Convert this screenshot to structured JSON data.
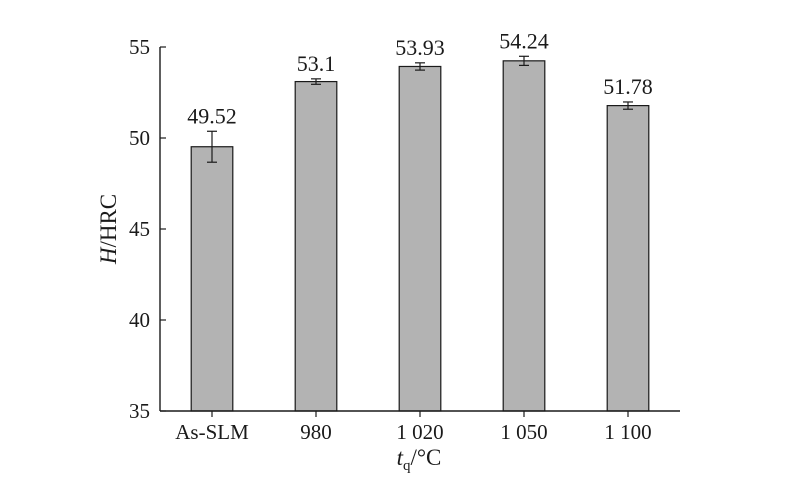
{
  "chart_data": {
    "type": "bar",
    "categories": [
      "As-SLM",
      "980",
      "1 020",
      "1 050",
      "1 100"
    ],
    "values": [
      49.52,
      53.1,
      53.93,
      54.24,
      51.78
    ],
    "errors": [
      0.85,
      0.15,
      0.2,
      0.25,
      0.2
    ],
    "data_labels": [
      "49.52",
      "53.1",
      "53.93",
      "54.24",
      "51.78"
    ],
    "yticks": [
      35,
      40,
      45,
      50,
      55
    ],
    "ylim": [
      35,
      55
    ],
    "ylabel": {
      "italic": "H",
      "rest": "/HRC"
    },
    "xlabel": {
      "main": "t",
      "sub": "q",
      "rest": "/°C"
    },
    "bar_color": "#b3b3b3",
    "edge_color": "#1a1a1a"
  }
}
